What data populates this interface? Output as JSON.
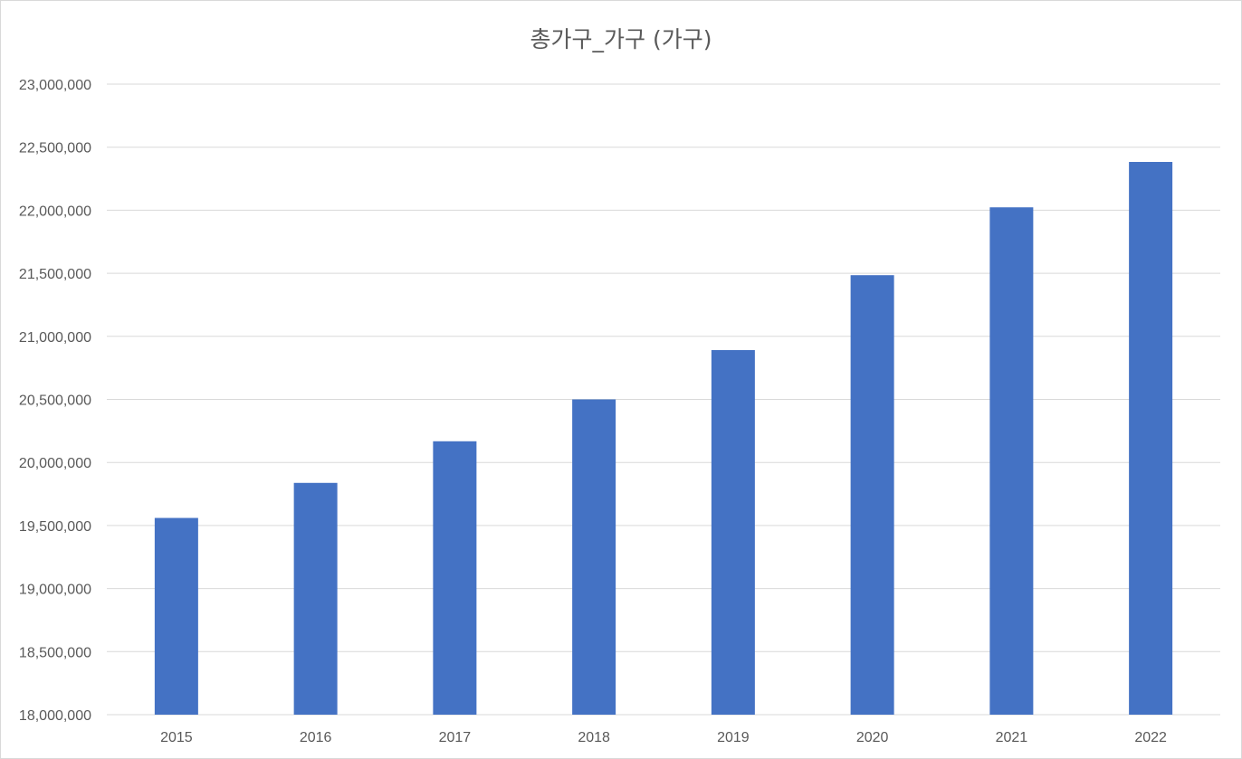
{
  "chart_data": {
    "type": "bar",
    "title": "총가구_가구 (가구)",
    "categories": [
      "2015",
      "2016",
      "2017",
      "2018",
      "2019",
      "2020",
      "2021",
      "2022"
    ],
    "series": [
      {
        "values": [
          19560000,
          19838000,
          20168000,
          20500000,
          20891000,
          21485000,
          22023000,
          22383000
        ]
      }
    ],
    "ylim": [
      18000000,
      23000000
    ],
    "yticks": [
      "18,000,000",
      "18,500,000",
      "19,000,000",
      "19,500,000",
      "20,000,000",
      "20,500,000",
      "21,000,000",
      "21,500,000",
      "22,000,000",
      "22,500,000",
      "23,000,000"
    ],
    "grid": true,
    "legend": "none",
    "bar_color": "#4472C4",
    "grid_color": "#d9d9d9"
  }
}
